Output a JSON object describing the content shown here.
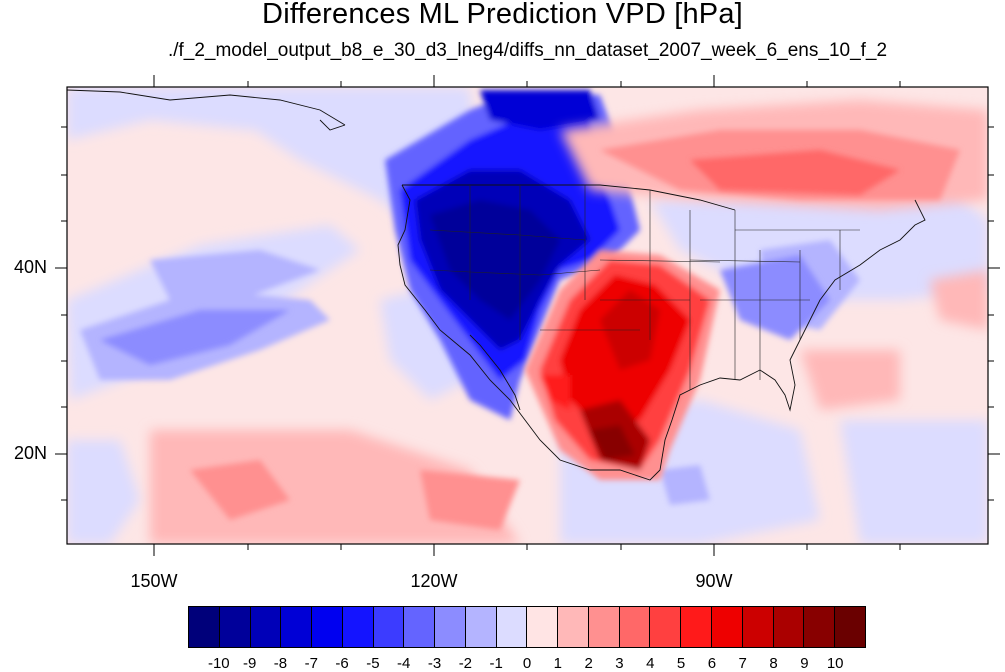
{
  "title": "Differences ML Prediction VPD [hPa]",
  "subtitle": "./f_2_model_output_b8_e_30_d3_lneg4/diffs_nn_dataset_2007_week_6_ens_10_f_2",
  "lat_labels": [
    {
      "value": 40,
      "label": "40N"
    },
    {
      "value": 20,
      "label": "20N"
    }
  ],
  "lon_labels": [
    {
      "value": -150,
      "label": "150W"
    },
    {
      "value": -120,
      "label": "120W"
    },
    {
      "value": -90,
      "label": "90W"
    }
  ],
  "colorbar": {
    "colors": [
      "#00007a",
      "#00009a",
      "#0000b8",
      "#0000d6",
      "#0000f0",
      "#1414ff",
      "#3c3cff",
      "#6464ff",
      "#8c8cff",
      "#b4b4ff",
      "#dcdcff",
      "#ffe4e4",
      "#ffb8b8",
      "#ff9090",
      "#ff6868",
      "#ff4040",
      "#ff1a1a",
      "#ee0000",
      "#cc0000",
      "#aa0000",
      "#880000",
      "#6a0000"
    ],
    "labels": [
      "-10",
      "-9",
      "-8",
      "-7",
      "-6",
      "-5",
      "-4",
      "-3",
      "-2",
      "-1",
      "0",
      "1",
      "2",
      "3",
      "4",
      "5",
      "6",
      "7",
      "8",
      "9",
      "10"
    ]
  },
  "map": {
    "lon_range": [
      -159.5,
      -63
    ],
    "lat_range": [
      9.5,
      59
    ],
    "background_color": "#fde6e6"
  }
}
